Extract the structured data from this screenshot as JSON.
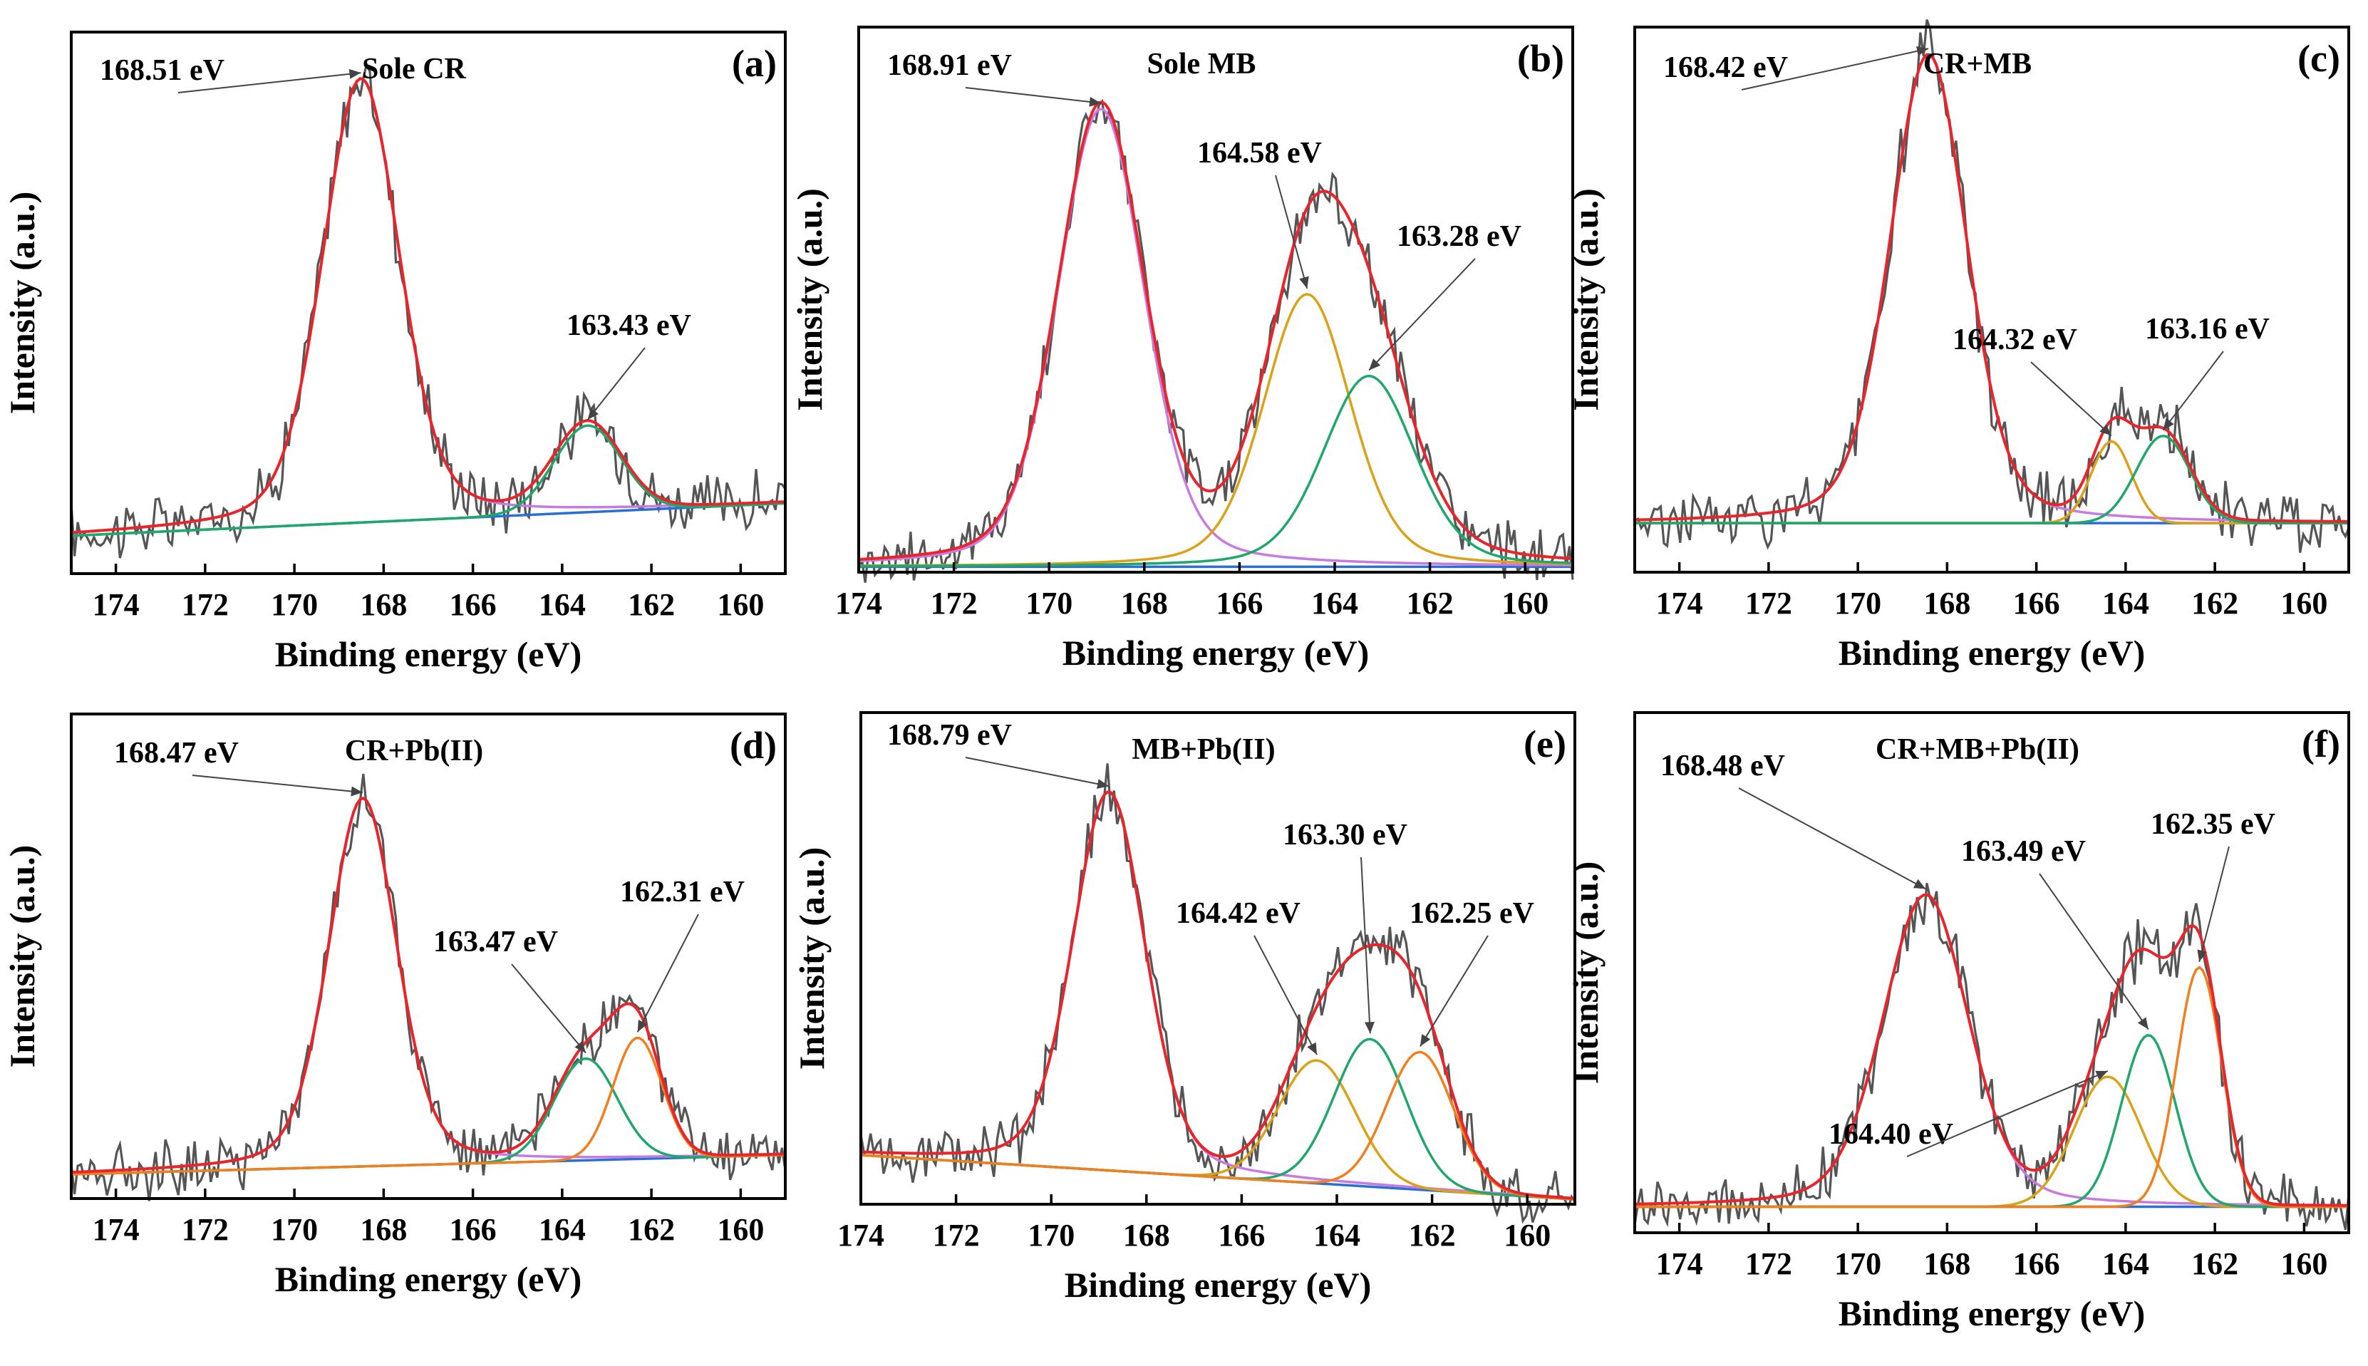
{
  "chart_data": [
    {
      "id": "a",
      "type": "line",
      "panel_label": "(a)",
      "title": "Sole CR",
      "xlabel": "Binding energy (eV)",
      "ylabel": "Intensity (a.u.)",
      "xlim": [
        175,
        159
      ],
      "ylim": [
        0,
        1.0
      ],
      "grid": false,
      "x_ticks": [
        174,
        172,
        170,
        168,
        166,
        164,
        162,
        160
      ],
      "x_tick_labels": [
        "174",
        "172",
        "170",
        "168",
        "166",
        "164",
        "162",
        "160"
      ],
      "baseline": {
        "start": 0.07,
        "end": 0.13
      },
      "components": [
        {
          "name": "S 2p 168.51",
          "center": 168.51,
          "height": 0.82,
          "width": 0.85,
          "gamma": 1.2,
          "color": "#c77be0"
        },
        {
          "name": "S 2p 163.43",
          "center": 163.43,
          "height": 0.16,
          "width": 0.75,
          "color": "#21a66b"
        }
      ],
      "envelope_color": "#e8252a",
      "annotations": [
        {
          "text": "168.51 eV",
          "value": 168.51
        },
        {
          "text": "163.43 eV",
          "value": 163.43
        }
      ]
    },
    {
      "id": "b",
      "type": "line",
      "panel_label": "(b)",
      "title": "Sole MB",
      "xlabel": "Binding energy (eV)",
      "ylabel": "Intensity (a.u.)",
      "xlim": [
        174,
        159
      ],
      "ylim": [
        0,
        1.0
      ],
      "grid": false,
      "x_ticks": [
        174,
        172,
        170,
        168,
        166,
        164,
        162,
        160
      ],
      "x_tick_labels": [
        "174",
        "172",
        "170",
        "168",
        "166",
        "164",
        "162",
        "160"
      ],
      "baseline": {
        "start": 0.01,
        "end": 0.01
      },
      "components": [
        {
          "name": "S 2p 168.91",
          "center": 168.91,
          "height": 0.84,
          "width": 0.9,
          "gamma": 1.0,
          "color": "#c77be0"
        },
        {
          "name": "S 2p 164.58",
          "center": 164.58,
          "height": 0.5,
          "width": 0.9,
          "gamma": 1.0,
          "color": "#d9a21a"
        },
        {
          "name": "S 2p 163.28",
          "center": 163.28,
          "height": 0.35,
          "width": 0.95,
          "gamma": 1.0,
          "color": "#21a66b"
        }
      ],
      "envelope_color": "#e8252a",
      "annotations": [
        {
          "text": "168.91 eV",
          "value": 168.91
        },
        {
          "text": "164.58 eV",
          "value": 164.58
        },
        {
          "text": "163.28 eV",
          "value": 163.28
        }
      ]
    },
    {
      "id": "c",
      "type": "line",
      "panel_label": "(c)",
      "title": "CR+MB",
      "xlabel": "Binding energy (eV)",
      "ylabel": "Intensity (a.u.)",
      "xlim": [
        175,
        159
      ],
      "ylim": [
        0,
        1.0
      ],
      "grid": false,
      "x_ticks": [
        174,
        172,
        170,
        168,
        166,
        164,
        162,
        160
      ],
      "x_tick_labels": [
        "174",
        "172",
        "170",
        "168",
        "166",
        "164",
        "162",
        "160"
      ],
      "baseline": {
        "start": 0.09,
        "end": 0.09
      },
      "components": [
        {
          "name": "S 2p 168.42",
          "center": 168.42,
          "height": 0.86,
          "width": 0.85,
          "gamma": 0.8,
          "color": "#c77be0"
        },
        {
          "name": "S 2p 164.32",
          "center": 164.32,
          "height": 0.15,
          "width": 0.45,
          "color": "#d9a21a"
        },
        {
          "name": "S 2p 163.16",
          "center": 163.16,
          "height": 0.16,
          "width": 0.6,
          "color": "#21a66b"
        }
      ],
      "envelope_color": "#e8252a",
      "annotations": [
        {
          "text": "168.42 eV",
          "value": 168.42
        },
        {
          "text": "164.32 eV",
          "value": 164.32
        },
        {
          "text": "163.16 eV",
          "value": 163.16
        }
      ]
    },
    {
      "id": "d",
      "type": "line",
      "panel_label": "(d)",
      "title": "CR+Pb(II)",
      "xlabel": "Binding energy (eV)",
      "ylabel": "Intensity (a.u.)",
      "xlim": [
        175,
        159
      ],
      "ylim": [
        0,
        1.0
      ],
      "grid": false,
      "x_ticks": [
        174,
        172,
        170,
        168,
        166,
        164,
        162,
        160
      ],
      "x_tick_labels": [
        "174",
        "172",
        "170",
        "168",
        "166",
        "164",
        "162",
        "160"
      ],
      "baseline": {
        "start": 0.05,
        "end": 0.09
      },
      "components": [
        {
          "name": "S 2p 168.47",
          "center": 168.47,
          "height": 0.76,
          "width": 0.75,
          "gamma": 1.3,
          "color": "#c77be0"
        },
        {
          "name": "S 2p 163.47",
          "center": 163.47,
          "height": 0.21,
          "width": 0.7,
          "color": "#21a66b"
        },
        {
          "name": "S 2p 162.31",
          "center": 162.31,
          "height": 0.25,
          "width": 0.55,
          "color": "#f07f1e"
        }
      ],
      "envelope_color": "#e8252a",
      "annotations": [
        {
          "text": "168.47 eV",
          "value": 168.47
        },
        {
          "text": "163.47 eV",
          "value": 163.47
        },
        {
          "text": "162.31 eV",
          "value": 162.31
        }
      ]
    },
    {
      "id": "e",
      "type": "line",
      "panel_label": "(e)",
      "title": "MB+Pb(II)",
      "xlabel": "Binding energy (eV)",
      "ylabel": "Intensity (a.u.)",
      "xlim": [
        174,
        159
      ],
      "ylim": [
        0,
        1.0
      ],
      "grid": false,
      "x_ticks": [
        174,
        172,
        170,
        168,
        166,
        164,
        162,
        160
      ],
      "x_tick_labels": [
        "174",
        "172",
        "170",
        "168",
        "166",
        "164",
        "162",
        "160"
      ],
      "baseline": {
        "start": 0.1,
        "end": 0.01
      },
      "components": [
        {
          "name": "S 2p 168.79",
          "center": 168.79,
          "height": 0.77,
          "width": 0.75,
          "gamma": 1.0,
          "color": "#c77be0"
        },
        {
          "name": "S 2p 164.42",
          "center": 164.42,
          "height": 0.25,
          "width": 0.8,
          "color": "#d9a21a"
        },
        {
          "name": "S 2p 163.30",
          "center": 163.3,
          "height": 0.3,
          "width": 0.75,
          "color": "#21a66b"
        },
        {
          "name": "S 2p 162.25",
          "center": 162.25,
          "height": 0.28,
          "width": 0.7,
          "color": "#f07f1e"
        }
      ],
      "envelope_color": "#e8252a",
      "annotations": [
        {
          "text": "168.79 eV",
          "value": 168.79
        },
        {
          "text": "164.42 eV",
          "value": 164.42
        },
        {
          "text": "163.30 eV",
          "value": 163.3
        },
        {
          "text": "162.25 eV",
          "value": 162.25
        }
      ]
    },
    {
      "id": "f",
      "type": "line",
      "panel_label": "(f)",
      "title": "CR+MB+Pb(II)",
      "xlabel": "Binding energy (eV)",
      "ylabel": "Intensity (a.u.)",
      "xlim": [
        175,
        159
      ],
      "ylim": [
        0,
        1.0
      ],
      "grid": false,
      "x_ticks": [
        174,
        172,
        170,
        168,
        166,
        164,
        162,
        160
      ],
      "x_tick_labels": [
        "174",
        "172",
        "170",
        "168",
        "166",
        "164",
        "162",
        "160"
      ],
      "baseline": {
        "start": 0.05,
        "end": 0.05
      },
      "components": [
        {
          "name": "S 2p 168.48",
          "center": 168.48,
          "height": 0.6,
          "width": 0.95,
          "gamma": 1.3,
          "color": "#c77be0"
        },
        {
          "name": "S 2p 164.40",
          "center": 164.4,
          "height": 0.25,
          "width": 0.75,
          "color": "#d9a21a"
        },
        {
          "name": "S 2p 163.49",
          "center": 163.49,
          "height": 0.33,
          "width": 0.6,
          "color": "#21a66b"
        },
        {
          "name": "S 2p 162.35",
          "center": 162.35,
          "height": 0.46,
          "width": 0.5,
          "color": "#f07f1e"
        }
      ],
      "envelope_color": "#e8252a",
      "annotations": [
        {
          "text": "168.48 eV",
          "value": 168.48
        },
        {
          "text": "163.49 eV",
          "value": 163.49
        },
        {
          "text": "162.35 eV",
          "value": 162.35
        },
        {
          "text": "164.40 eV",
          "value": 164.4
        }
      ]
    }
  ],
  "colors": {
    "raw_data": "#555555",
    "background_line": "#2a6fd6",
    "axis": "#000000"
  }
}
